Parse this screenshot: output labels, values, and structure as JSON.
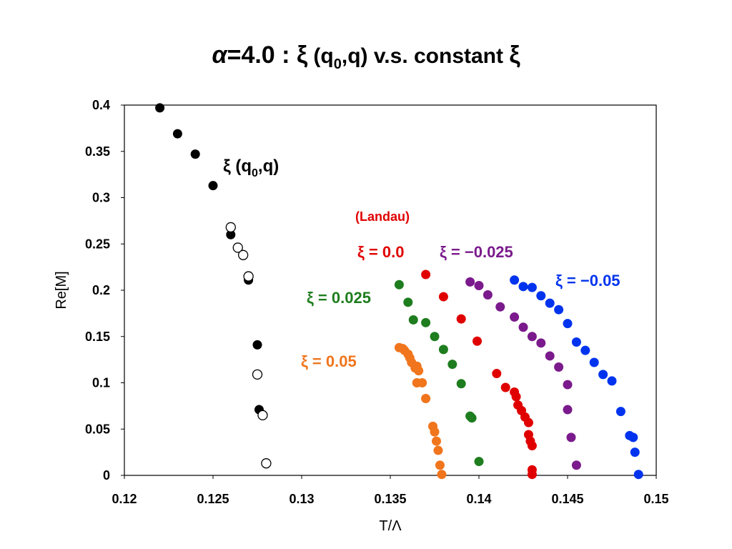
{
  "chart_data": {
    "type": "scatter",
    "title": "α =4.0 : ξ (q0,q) v.s. constant ξ",
    "title_parts": {
      "alpha": "α",
      "eq": "=4.0 : ",
      "xi1": "ξ",
      "q_open": " (q",
      "q_sub": "0",
      "q_close": ",q)  v.s.  constant ",
      "xi2": "ξ"
    },
    "xlabel": "T/Λ",
    "ylabel": "Re[M]",
    "xlim": [
      0.12,
      0.15
    ],
    "ylim": [
      0,
      0.4
    ],
    "xticks": [
      "0.12",
      "0.125",
      "0.13",
      "0.135",
      "0.14",
      "0.145",
      "0.15"
    ],
    "yticks": [
      "0",
      "0.05",
      "0.1",
      "0.15",
      "0.2",
      "0.25",
      "0.3",
      "0.35",
      "0.4"
    ],
    "grid": false,
    "series": [
      {
        "label_parts": {
          "xi": "ξ",
          "q_open": " (q",
          "q_sub": "0",
          "q_close": ",q)"
        },
        "color": "#000000",
        "filled": true,
        "points": [
          [
            0.122,
            0.397
          ],
          [
            0.123,
            0.369
          ],
          [
            0.124,
            0.347
          ],
          [
            0.125,
            0.313
          ],
          [
            0.126,
            0.26
          ],
          [
            0.127,
            0.211
          ],
          [
            0.1275,
            0.141
          ],
          [
            0.1276,
            0.071
          ]
        ]
      },
      {
        "color": "#000000",
        "filled": false,
        "points": [
          [
            0.126,
            0.268
          ],
          [
            0.1264,
            0.246
          ],
          [
            0.1267,
            0.238
          ],
          [
            0.127,
            0.215
          ],
          [
            0.1275,
            0.109
          ],
          [
            0.1278,
            0.065
          ],
          [
            0.128,
            0.013
          ]
        ]
      },
      {
        "label": "ξ = 0.0",
        "color": "#e00000",
        "filled": true,
        "points": [
          [
            0.137,
            0.217
          ],
          [
            0.138,
            0.193
          ],
          [
            0.139,
            0.169
          ],
          [
            0.1399,
            0.145
          ],
          [
            0.141,
            0.11
          ],
          [
            0.1415,
            0.095
          ],
          [
            0.142,
            0.09
          ],
          [
            0.1421,
            0.085
          ],
          [
            0.1422,
            0.076
          ],
          [
            0.1424,
            0.07
          ],
          [
            0.1426,
            0.063
          ],
          [
            0.1428,
            0.057
          ],
          [
            0.1428,
            0.044
          ],
          [
            0.1429,
            0.037
          ],
          [
            0.143,
            0.032
          ],
          [
            0.143,
            0.006
          ],
          [
            0.143,
            0.001
          ]
        ]
      },
      {
        "label": "ξ = −0.025",
        "color": "#7b1a8c",
        "filled": true,
        "points": [
          [
            0.1395,
            0.209
          ],
          [
            0.14,
            0.205
          ],
          [
            0.1405,
            0.195
          ],
          [
            0.1412,
            0.182
          ],
          [
            0.142,
            0.171
          ],
          [
            0.1425,
            0.16
          ],
          [
            0.143,
            0.15
          ],
          [
            0.1435,
            0.143
          ],
          [
            0.144,
            0.129
          ],
          [
            0.1445,
            0.117
          ],
          [
            0.145,
            0.098
          ],
          [
            0.145,
            0.071
          ],
          [
            0.1452,
            0.041
          ],
          [
            0.1455,
            0.011
          ]
        ]
      },
      {
        "label": "ξ = −0.05",
        "color": "#0033ee",
        "filled": true,
        "points": [
          [
            0.142,
            0.211
          ],
          [
            0.1425,
            0.204
          ],
          [
            0.143,
            0.203
          ],
          [
            0.1435,
            0.194
          ],
          [
            0.144,
            0.186
          ],
          [
            0.1445,
            0.179
          ],
          [
            0.145,
            0.164
          ],
          [
            0.1455,
            0.144
          ],
          [
            0.146,
            0.135
          ],
          [
            0.1465,
            0.122
          ],
          [
            0.147,
            0.109
          ],
          [
            0.1475,
            0.102
          ],
          [
            0.148,
            0.069
          ],
          [
            0.1485,
            0.043
          ],
          [
            0.1487,
            0.041
          ],
          [
            0.1488,
            0.025
          ],
          [
            0.149,
            0.001
          ]
        ]
      },
      {
        "label": "ξ = 0.025",
        "color": "#1e7d1e",
        "filled": true,
        "points": [
          [
            0.1355,
            0.206
          ],
          [
            0.136,
            0.187
          ],
          [
            0.1363,
            0.168
          ],
          [
            0.137,
            0.165
          ],
          [
            0.1375,
            0.15
          ],
          [
            0.138,
            0.136
          ],
          [
            0.1385,
            0.12
          ],
          [
            0.139,
            0.099
          ],
          [
            0.1395,
            0.064
          ],
          [
            0.1396,
            0.062
          ],
          [
            0.14,
            0.015
          ]
        ]
      },
      {
        "label": "ξ = 0.05",
        "color": "#f0751c",
        "filled": true,
        "points": [
          [
            0.1355,
            0.138
          ],
          [
            0.1357,
            0.137
          ],
          [
            0.1358,
            0.135
          ],
          [
            0.136,
            0.131
          ],
          [
            0.1361,
            0.127
          ],
          [
            0.1362,
            0.122
          ],
          [
            0.1364,
            0.116
          ],
          [
            0.1365,
            0.118
          ],
          [
            0.1366,
            0.113
          ],
          [
            0.1365,
            0.1
          ],
          [
            0.1368,
            0.1
          ],
          [
            0.137,
            0.083
          ],
          [
            0.1374,
            0.053
          ],
          [
            0.1375,
            0.047
          ],
          [
            0.1376,
            0.037
          ],
          [
            0.1377,
            0.027
          ],
          [
            0.1378,
            0.011
          ],
          [
            0.1379,
            0.001
          ]
        ]
      }
    ],
    "annotations": [
      {
        "text": "(Landau)",
        "color": "#e00000"
      }
    ]
  }
}
